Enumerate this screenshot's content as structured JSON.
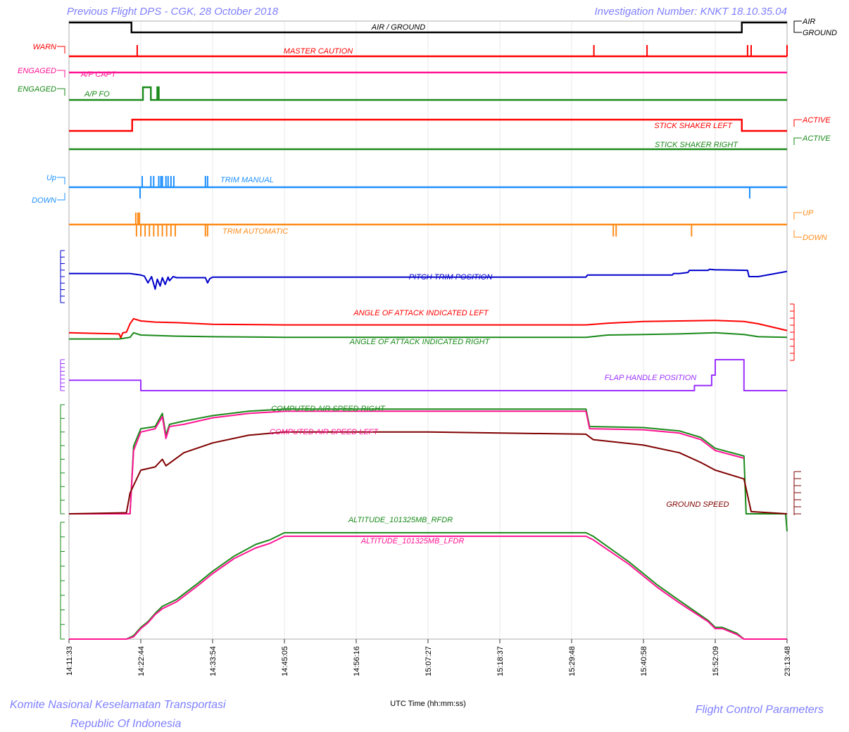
{
  "header": {
    "left_title": "Previous Flight DPS - CGK, 28 October 2018",
    "right_title": "Investigation Number: KNKT 18.10.35.04"
  },
  "footer": {
    "org_line1": "Komite Nasional Keselamatan Transportasi",
    "org_line2": "Republic Of Indonesia",
    "section": "Flight Control Parameters"
  },
  "colors": {
    "title": "#7f7fff",
    "black": "#000000",
    "red": "#ff0000",
    "magenta": "#ff1493",
    "green": "#1a8a1a",
    "blue": "#1e90ff",
    "orange": "#ff8c1a",
    "navy": "#0000cc",
    "purple": "#9b30ff",
    "maroon": "#800000",
    "grid": "#d9d9d9"
  },
  "chart_data": {
    "type": "line",
    "xlabel": "UTC Time (hh:mm:ss)",
    "x_ticks": [
      "14:11:33",
      "14:22:44",
      "14:33:54",
      "14:45:05",
      "14:56:16",
      "15:07:27",
      "15:18:37",
      "15:29:48",
      "15:40:58",
      "15:52:09",
      "23:13:48"
    ],
    "discrete_traces": [
      {
        "name": "AIR / GROUND",
        "color_key": "black",
        "states_left": [],
        "states_right": [
          "AIR",
          "GROUND"
        ],
        "x": [
          0,
          0.087,
          0.087,
          0.937,
          0.937,
          1
        ],
        "level": [
          1,
          1,
          0,
          0,
          1,
          1
        ]
      },
      {
        "name": "MASTER CAUTION",
        "color_key": "red",
        "states_left": [
          "WARN"
        ],
        "states_right": [],
        "spikes": [
          0.095,
          0.731,
          0.805,
          0.945,
          0.95,
          1.0
        ]
      },
      {
        "name": "A/P CAPT",
        "color_key": "magenta",
        "states_left": [
          "ENGAGED"
        ],
        "states_right": [],
        "x": [
          0,
          1
        ],
        "level": [
          1,
          1
        ]
      },
      {
        "name": "A/P FO",
        "color_key": "green",
        "states_left": [
          "ENGAGED"
        ],
        "states_right": [],
        "x": [
          0,
          0.103,
          0.103,
          0.114,
          0.114,
          0.123,
          0.123,
          0.125,
          0.125,
          1
        ],
        "level": [
          0,
          0,
          1,
          1,
          0,
          0,
          1,
          1,
          0,
          0
        ]
      },
      {
        "name": "STICK SHAKER LEFT",
        "color_key": "red",
        "states_left": [],
        "states_right": [
          "ACTIVE"
        ],
        "x": [
          0,
          0.088,
          0.088,
          0.937,
          0.937,
          1
        ],
        "level": [
          0,
          0,
          1,
          1,
          0,
          0
        ]
      },
      {
        "name": "STICK SHAKER RIGHT",
        "color_key": "green",
        "states_left": [],
        "states_right": [
          "ACTIVE"
        ],
        "x": [
          0,
          1
        ],
        "level": [
          0,
          0
        ]
      },
      {
        "name": "TRIM MANUAL",
        "color_key": "blue",
        "states_left": [
          "Up",
          "DOWN"
        ],
        "states_right": [],
        "up_spikes": [
          0.102,
          0.114,
          0.118,
          0.125,
          0.128,
          0.13,
          0.135,
          0.138,
          0.142,
          0.146,
          0.19,
          0.193
        ],
        "down_spikes": [
          0.099,
          0.948
        ]
      },
      {
        "name": "TRIM AUTOMATIC",
        "color_key": "orange",
        "states_left": [],
        "states_right": [
          "UP",
          "DOWN"
        ],
        "up_spikes": [
          0.093,
          0.096,
          0.098
        ],
        "down_spikes": [
          0.094,
          0.1,
          0.106,
          0.112,
          0.118,
          0.124,
          0.13,
          0.136,
          0.142,
          0.148,
          0.19,
          0.193,
          0.758,
          0.762,
          0.867
        ]
      }
    ],
    "analog_series": [
      {
        "name": "PITCH TRIM POSITION",
        "color_key": "navy",
        "x": [
          0,
          0.085,
          0.1,
          0.105,
          0.11,
          0.115,
          0.12,
          0.123,
          0.127,
          0.13,
          0.134,
          0.138,
          0.14,
          0.145,
          0.15,
          0.19,
          0.193,
          0.196,
          0.2,
          0.21,
          0.72,
          0.722,
          0.84,
          0.842,
          0.85,
          0.862,
          0.864,
          0.89,
          0.892,
          0.9,
          0.905,
          0.945,
          0.947,
          0.95,
          0.96,
          1
        ],
        "y": [
          5.6,
          5.6,
          5.3,
          5.1,
          3.8,
          5.0,
          2.6,
          4.5,
          3.2,
          4.8,
          3.5,
          4.9,
          4.2,
          5.0,
          4.8,
          4.8,
          3.8,
          4.6,
          4.9,
          4.9,
          4.9,
          5.3,
          5.3,
          5.6,
          5.6,
          5.8,
          6.2,
          6.2,
          6.4,
          6.3,
          6.3,
          6.2,
          5.0,
          5.0,
          5.0,
          6.0
        ]
      },
      {
        "name": "ANGLE OF ATTACK INDICATED LEFT",
        "color_key": "red",
        "x": [
          0,
          0.07,
          0.072,
          0.075,
          0.08,
          0.085,
          0.09,
          0.1,
          0.12,
          0.15,
          0.2,
          0.3,
          0.5,
          0.72,
          0.75,
          0.8,
          0.85,
          0.9,
          0.94,
          0.96,
          1
        ],
        "y": [
          4.9,
          4.7,
          4.0,
          4.9,
          5.0,
          6.5,
          7.4,
          7.0,
          6.8,
          6.7,
          6.4,
          6.3,
          6.3,
          6.3,
          6.6,
          6.9,
          7.0,
          7.1,
          6.9,
          6.5,
          5.3
        ]
      },
      {
        "name": "ANGLE OF ATTACK INDICATED RIGHT",
        "color_key": "green",
        "x": [
          0,
          0.07,
          0.085,
          0.09,
          0.1,
          0.15,
          0.2,
          0.3,
          0.5,
          0.72,
          0.75,
          0.8,
          0.85,
          0.9,
          0.94,
          0.96,
          1
        ],
        "y": [
          3.8,
          3.8,
          4.1,
          4.9,
          4.5,
          4.3,
          4.2,
          4.1,
          4.1,
          4.1,
          4.5,
          4.6,
          4.7,
          4.9,
          4.6,
          4.2,
          4.1
        ]
      },
      {
        "name": "FLAP HANDLE POSITION",
        "color_key": "purple",
        "x": [
          0,
          0.1,
          0.1,
          0.871,
          0.871,
          0.895,
          0.895,
          0.9,
          0.9,
          0.94,
          0.94,
          1
        ],
        "y": [
          1,
          1,
          0,
          0,
          0.5,
          0.5,
          1.5,
          1.5,
          3,
          3,
          0,
          0
        ]
      },
      {
        "name": "COMPUTED AIR SPEED RIGHT",
        "color_key": "green",
        "x": [
          0,
          0.085,
          0.09,
          0.1,
          0.12,
          0.13,
          0.135,
          0.14,
          0.16,
          0.2,
          0.25,
          0.3,
          0.5,
          0.72,
          0.725,
          0.8,
          0.85,
          0.88,
          0.9,
          0.94,
          0.943,
          0.945,
          0.998,
          1
        ],
        "y": [
          0,
          0,
          6.2,
          7.8,
          8.0,
          9.2,
          7.2,
          8.2,
          8.5,
          9.0,
          9.4,
          9.6,
          9.6,
          9.6,
          8.0,
          7.9,
          7.6,
          7.0,
          6.0,
          5.3,
          0,
          0,
          0,
          -1.6
        ]
      },
      {
        "name": "COMPUTED AIR SPEED LEFT",
        "color_key": "magenta",
        "x": [
          0,
          0.085,
          0.09,
          0.1,
          0.12,
          0.13,
          0.135,
          0.14,
          0.16,
          0.2,
          0.25,
          0.3,
          0.5,
          0.72,
          0.725,
          0.8,
          0.85,
          0.88,
          0.9,
          0.94
        ],
        "y": [
          0,
          0,
          5.8,
          7.5,
          7.8,
          8.9,
          6.9,
          8.0,
          8.2,
          8.8,
          9.2,
          9.4,
          9.4,
          9.4,
          7.8,
          7.7,
          7.4,
          6.8,
          5.8,
          5.1
        ]
      },
      {
        "name": "GROUND SPEED",
        "color_key": "maroon",
        "x": [
          0,
          0.08,
          0.085,
          0.1,
          0.12,
          0.13,
          0.135,
          0.16,
          0.2,
          0.25,
          0.3,
          0.5,
          0.72,
          0.73,
          0.8,
          0.85,
          0.88,
          0.9,
          0.94,
          0.95,
          1
        ],
        "y": [
          0,
          0.1,
          1.9,
          4.0,
          4.3,
          5.0,
          4.4,
          5.6,
          6.5,
          7.2,
          7.5,
          7.5,
          7.3,
          6.8,
          6.3,
          5.6,
          4.7,
          4.0,
          3.2,
          0.2,
          0
        ]
      },
      {
        "name": "ALTITUDE_101325MB_RFDR",
        "color_key": "green",
        "x": [
          0,
          0.08,
          0.09,
          0.1,
          0.11,
          0.12,
          0.13,
          0.15,
          0.18,
          0.2,
          0.23,
          0.26,
          0.28,
          0.3,
          0.31,
          0.33,
          0.4,
          0.5,
          0.6,
          0.72,
          0.73,
          0.78,
          0.82,
          0.85,
          0.89,
          0.9,
          0.91,
          0.93,
          0.94,
          1
        ],
        "y": [
          0,
          0,
          0.3,
          1.0,
          1.5,
          2.2,
          2.8,
          3.4,
          4.8,
          5.8,
          7.1,
          8.1,
          8.5,
          9.1,
          9.1,
          9.1,
          9.1,
          9.1,
          9.1,
          9.1,
          8.8,
          6.6,
          4.6,
          3.3,
          1.6,
          1.0,
          1.0,
          0.5,
          0,
          0
        ]
      },
      {
        "name": "ALTITUDE_101325MB_LFDR",
        "color_key": "magenta",
        "x": [
          0,
          0.08,
          0.09,
          0.1,
          0.11,
          0.12,
          0.13,
          0.15,
          0.18,
          0.2,
          0.23,
          0.26,
          0.28,
          0.3,
          0.31,
          0.33,
          0.4,
          0.5,
          0.6,
          0.72,
          0.73,
          0.78,
          0.82,
          0.85,
          0.89,
          0.9,
          0.91,
          0.93,
          0.94,
          1
        ],
        "y": [
          0,
          0,
          0.2,
          0.9,
          1.4,
          2.1,
          2.6,
          3.2,
          4.6,
          5.6,
          6.9,
          7.8,
          8.2,
          8.8,
          8.8,
          8.8,
          8.8,
          8.8,
          8.8,
          8.8,
          8.5,
          6.4,
          4.4,
          3.1,
          1.5,
          0.9,
          0.9,
          0.4,
          0,
          0
        ]
      }
    ]
  }
}
